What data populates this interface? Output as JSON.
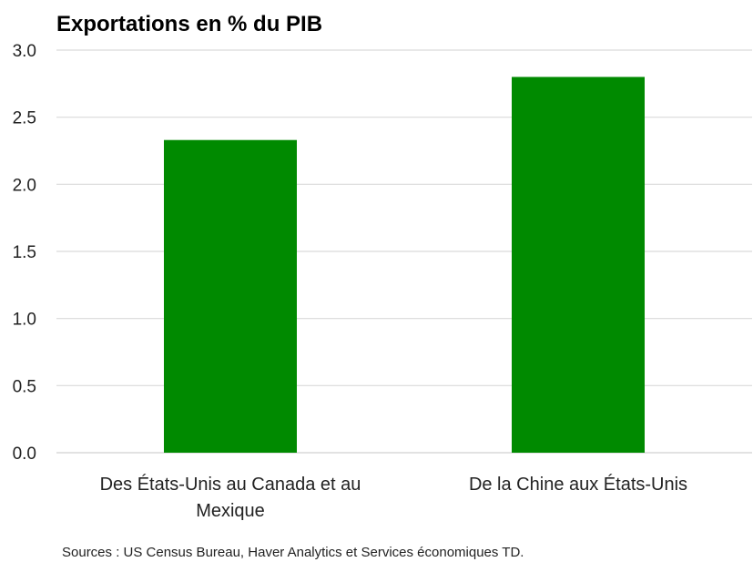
{
  "chart_data": {
    "type": "bar",
    "title": "Exportations en % du PIB",
    "categories": [
      [
        "Des États-Unis au Canada et au",
        "Mexique"
      ],
      [
        "De la Chine aux États-Unis"
      ]
    ],
    "values": [
      2.33,
      2.8
    ],
    "xlabel": "",
    "ylabel": "",
    "ylim": [
      0,
      3.0
    ],
    "yticks": [
      "0.0",
      "0.5",
      "1.0",
      "1.5",
      "2.0",
      "2.5",
      "3.0"
    ],
    "ytick_values": [
      0,
      0.5,
      1.0,
      1.5,
      2.0,
      2.5,
      3.0
    ],
    "grid": true,
    "bar_color": "#008a00",
    "grid_color": "#d9d9d9"
  },
  "source": "Sources : US Census Bureau, Haver Analytics et Services économiques TD."
}
